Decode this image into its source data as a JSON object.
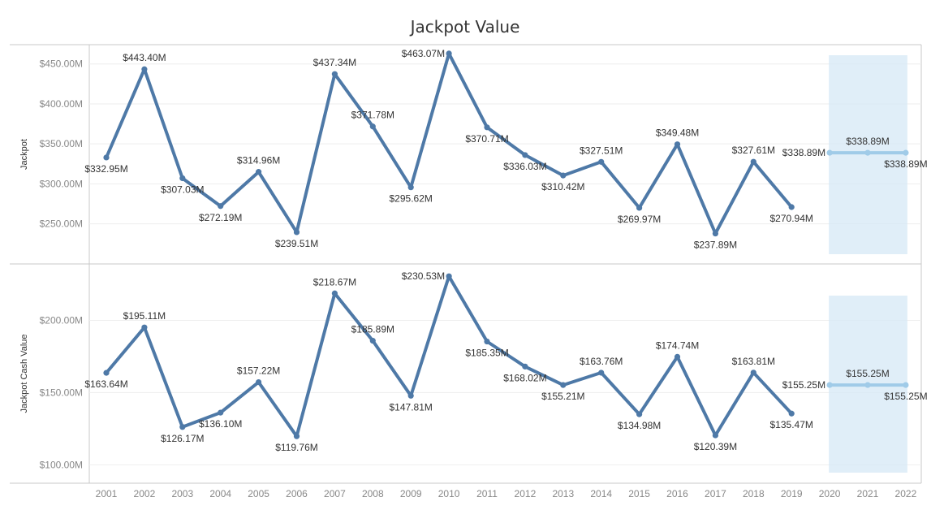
{
  "chart_data": {
    "type": "line",
    "title": "Jackpot Value",
    "x": [
      2001,
      2002,
      2003,
      2004,
      2005,
      2006,
      2007,
      2008,
      2009,
      2010,
      2011,
      2012,
      2013,
      2014,
      2015,
      2016,
      2017,
      2018,
      2019,
      2020,
      2021,
      2022
    ],
    "x_tick_labels": [
      "2001",
      "2002",
      "2003",
      "2004",
      "2005",
      "2006",
      "2007",
      "2008",
      "2009",
      "2010",
      "2011",
      "2012",
      "2013",
      "2014",
      "2015",
      "2016",
      "2017",
      "2018",
      "2019",
      "2020",
      "2021",
      "2022"
    ],
    "forecast_band": {
      "from": 2020,
      "to": 2022,
      "color": "#d6e8f6"
    },
    "colors": {
      "actual": "#4e79a7",
      "forecast": "#a0cbe8",
      "grid": "#eeeeee",
      "pane_border": "#c8c8c8"
    },
    "panes": [
      {
        "ylabel": "Jackpot",
        "ylim": [
          212,
          466
        ],
        "yticks": [
          250,
          300,
          350,
          400,
          450
        ],
        "ytick_labels": [
          "$250.00M",
          "$300.00M",
          "$350.00M",
          "$400.00M",
          "$450.00M"
        ],
        "actual": {
          "x": [
            2001,
            2002,
            2003,
            2004,
            2005,
            2006,
            2007,
            2008,
            2009,
            2010,
            2011,
            2012,
            2013,
            2014,
            2015,
            2016,
            2017,
            2018,
            2019
          ],
          "values": [
            332.95,
            443.4,
            307.03,
            272.19,
            314.96,
            239.51,
            437.34,
            371.78,
            295.62,
            463.07,
            370.71,
            336.03,
            310.42,
            327.51,
            269.97,
            349.48,
            237.89,
            327.61,
            270.94
          ],
          "labels": [
            "$332.95M",
            "$443.40M",
            "$307.03M",
            "$272.19M",
            "$314.96M",
            "$239.51M",
            "$437.34M",
            "$371.78M",
            "$295.62M",
            "$463.07M",
            "$370.71M",
            "$336.03M",
            "$310.42M",
            "$327.51M",
            "$269.97M",
            "$349.48M",
            "$237.89M",
            "$327.61M",
            "$270.94M"
          ],
          "label_pos": [
            "below",
            "above",
            "below",
            "below",
            "above",
            "below",
            "above",
            "above",
            "below",
            "left",
            "below",
            "below",
            "below",
            "above",
            "below",
            "above",
            "below",
            "above",
            "below"
          ]
        },
        "forecast": {
          "x": [
            2020,
            2021,
            2022
          ],
          "values": [
            338.89,
            338.89,
            338.89
          ],
          "labels": [
            "$338.89M",
            "$338.89M",
            "$338.89M"
          ],
          "label_pos": [
            "left",
            "above",
            "below"
          ]
        }
      },
      {
        "ylabel": "Jackpot Cash Value",
        "ylim": [
          94,
          234
        ],
        "yticks": [
          100,
          150,
          200
        ],
        "ytick_labels": [
          "$100.00M",
          "$150.00M",
          "$200.00M"
        ],
        "actual": {
          "x": [
            2001,
            2002,
            2003,
            2004,
            2005,
            2006,
            2007,
            2008,
            2009,
            2010,
            2011,
            2012,
            2013,
            2014,
            2015,
            2016,
            2017,
            2018,
            2019
          ],
          "values": [
            163.64,
            195.11,
            126.17,
            136.1,
            157.22,
            119.76,
            218.67,
            185.89,
            147.81,
            230.53,
            185.35,
            168.02,
            155.21,
            163.76,
            134.98,
            174.74,
            120.39,
            163.81,
            135.47
          ],
          "labels": [
            "$163.64M",
            "$195.11M",
            "$126.17M",
            "$136.10M",
            "$157.22M",
            "$119.76M",
            "$218.67M",
            "$185.89M",
            "$147.81M",
            "$230.53M",
            "$185.35M",
            "$168.02M",
            "$155.21M",
            "$163.76M",
            "$134.98M",
            "$174.74M",
            "$120.39M",
            "$163.81M",
            "$135.47M"
          ],
          "label_pos": [
            "below",
            "above",
            "below",
            "below",
            "above",
            "below",
            "above",
            "above",
            "below",
            "left",
            "below",
            "below",
            "below",
            "above",
            "below",
            "above",
            "below",
            "above",
            "below"
          ]
        },
        "forecast": {
          "x": [
            2020,
            2021,
            2022
          ],
          "values": [
            155.25,
            155.25,
            155.25
          ],
          "labels": [
            "$155.25M",
            "$155.25M",
            "$155.25M"
          ],
          "label_pos": [
            "left",
            "above",
            "below"
          ]
        }
      }
    ]
  }
}
